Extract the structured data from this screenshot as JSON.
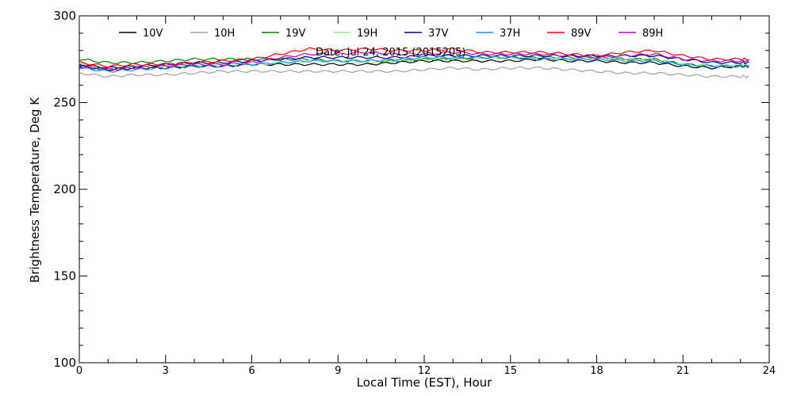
{
  "chart_data": {
    "type": "line",
    "title": "Date: Jul 24, 2015 (2015205)",
    "xlabel": "Local Time (EST), Hour",
    "ylabel": "Brightness Temperature, Deg K",
    "xlim": [
      0,
      24
    ],
    "ylim": [
      100,
      300
    ],
    "xticks": [
      0,
      3,
      6,
      9,
      12,
      15,
      18,
      21,
      24
    ],
    "yticks": [
      100,
      150,
      200,
      250,
      300
    ],
    "grid": false,
    "legend_position": "top",
    "series": [
      {
        "name": "10V",
        "color": "#000000",
        "x": [
          0,
          1,
          2,
          3,
          4,
          5,
          6,
          7,
          8,
          9,
          10,
          11,
          12,
          13,
          14,
          15,
          16,
          17,
          18,
          19,
          20,
          21,
          22,
          23,
          23.3
        ],
        "y": [
          271,
          269,
          270,
          270,
          271,
          271,
          272,
          272,
          272,
          272,
          272,
          273,
          274,
          274,
          274,
          274,
          275,
          274,
          274,
          273,
          273,
          271,
          270,
          271,
          271
        ]
      },
      {
        "name": "10H",
        "color": "#a0a0a0",
        "x": [
          0,
          1,
          2,
          3,
          4,
          5,
          6,
          7,
          8,
          9,
          10,
          11,
          12,
          13,
          14,
          15,
          16,
          17,
          18,
          19,
          20,
          21,
          22,
          23,
          23.3
        ],
        "y": [
          267,
          265,
          266,
          266,
          267,
          268,
          268,
          268,
          268,
          268,
          268,
          268,
          269,
          270,
          269,
          270,
          270,
          269,
          268,
          267,
          267,
          266,
          265,
          265,
          265
        ]
      },
      {
        "name": "19V",
        "color": "#008000",
        "x": [
          0,
          1,
          2,
          3,
          4,
          5,
          6,
          7,
          8,
          9,
          10,
          11,
          12,
          13,
          14,
          15,
          16,
          17,
          18,
          19,
          20,
          21,
          22,
          23,
          23.3
        ],
        "y": [
          275,
          273,
          273,
          274,
          275,
          275,
          275,
          275,
          275,
          274,
          274,
          274,
          275,
          275,
          276,
          276,
          276,
          276,
          276,
          275,
          275,
          272,
          271,
          271,
          271
        ]
      },
      {
        "name": "19H",
        "color": "#90ee90",
        "x": [
          0,
          1,
          2,
          3,
          4,
          5,
          6,
          7,
          8,
          9,
          10,
          11,
          12,
          13,
          14,
          15,
          16,
          17,
          18,
          19,
          20,
          21,
          22,
          23,
          23.3
        ],
        "y": [
          272,
          270,
          271,
          271,
          272,
          272,
          272,
          273,
          274,
          274,
          273,
          274,
          275,
          275,
          276,
          276,
          276,
          275,
          275,
          275,
          275,
          272,
          271,
          272,
          272
        ]
      },
      {
        "name": "37V",
        "color": "#000080",
        "x": [
          0,
          1,
          2,
          3,
          4,
          5,
          6,
          7,
          8,
          9,
          10,
          11,
          12,
          13,
          14,
          15,
          16,
          17,
          18,
          19,
          20,
          21,
          22,
          23,
          23.3
        ],
        "y": [
          272,
          270,
          271,
          272,
          273,
          273,
          274,
          275,
          276,
          276,
          276,
          276,
          277,
          277,
          277,
          277,
          277,
          277,
          277,
          277,
          277,
          275,
          273,
          273,
          273
        ]
      },
      {
        "name": "37H",
        "color": "#1e90ff",
        "x": [
          0,
          1,
          2,
          3,
          4,
          5,
          6,
          7,
          8,
          9,
          10,
          11,
          12,
          13,
          14,
          15,
          16,
          17,
          18,
          19,
          20,
          21,
          22,
          23,
          23.3
        ],
        "y": [
          270,
          268,
          269,
          270,
          271,
          271,
          272,
          273,
          274,
          274,
          274,
          275,
          276,
          276,
          276,
          276,
          275,
          275,
          275,
          274,
          274,
          272,
          271,
          271,
          271
        ]
      },
      {
        "name": "89V",
        "color": "#ff0000",
        "x": [
          0,
          1,
          2,
          3,
          4,
          5,
          6,
          7,
          8,
          9,
          10,
          11,
          12,
          13,
          14,
          15,
          16,
          17,
          18,
          19,
          20,
          21,
          22,
          23,
          23.3
        ],
        "y": [
          273,
          271,
          272,
          272,
          273,
          274,
          275,
          278,
          281,
          280,
          281,
          280,
          280,
          281,
          279,
          279,
          279,
          278,
          277,
          279,
          280,
          277,
          275,
          275,
          275
        ]
      },
      {
        "name": "89H",
        "color": "#c000c0",
        "x": [
          0,
          1,
          2,
          3,
          4,
          5,
          6,
          7,
          8,
          9,
          10,
          11,
          12,
          13,
          14,
          15,
          16,
          17,
          18,
          19,
          20,
          21,
          22,
          23,
          23.3
        ],
        "y": [
          271,
          269,
          270,
          271,
          272,
          272,
          273,
          276,
          278,
          278,
          279,
          278,
          278,
          279,
          278,
          278,
          278,
          277,
          276,
          277,
          278,
          275,
          274,
          274,
          274
        ]
      }
    ]
  }
}
